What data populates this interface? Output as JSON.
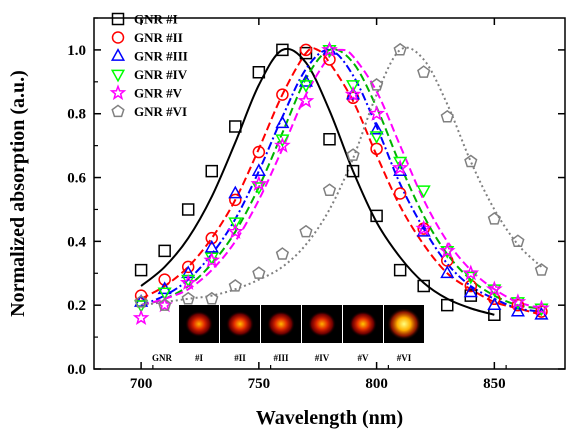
{
  "chart_data": {
    "type": "scatter",
    "xlabel": "Wavelength (nm)",
    "ylabel": "Normalized absorption (a.u.)",
    "xlim": [
      680,
      880
    ],
    "ylim": [
      0.0,
      1.1
    ],
    "xticks": [
      "700",
      "750",
      "800",
      "850"
    ],
    "yticks": [
      "0.0",
      "0.2",
      "0.4",
      "0.6",
      "0.8",
      "1.0"
    ],
    "legend_position": "top-left",
    "series": [
      {
        "name": "GNR #I",
        "marker": "square",
        "color": "#000000",
        "fit_color": "#000000",
        "fit_style": "solid",
        "x": [
          700,
          710,
          720,
          730,
          740,
          750,
          760,
          770,
          780,
          790,
          800,
          810,
          820,
          830,
          840,
          850
        ],
        "y": [
          0.31,
          0.37,
          0.5,
          0.62,
          0.76,
          0.93,
          1.0,
          0.99,
          0.72,
          0.62,
          0.48,
          0.31,
          0.26,
          0.2,
          0.23,
          0.17
        ],
        "fit": [
          [
            700,
            0.26
          ],
          [
            710,
            0.32
          ],
          [
            720,
            0.41
          ],
          [
            730,
            0.54
          ],
          [
            740,
            0.71
          ],
          [
            750,
            0.89
          ],
          [
            760,
            1.0
          ],
          [
            770,
            0.96
          ],
          [
            780,
            0.81
          ],
          [
            790,
            0.62
          ],
          [
            800,
            0.46
          ],
          [
            810,
            0.35
          ],
          [
            820,
            0.27
          ],
          [
            830,
            0.22
          ],
          [
            840,
            0.19
          ],
          [
            850,
            0.17
          ]
        ]
      },
      {
        "name": "GNR #II",
        "marker": "circle",
        "color": "#ff0000",
        "fit_color": "#ff0000",
        "fit_style": "dashed",
        "x": [
          700,
          710,
          720,
          730,
          740,
          750,
          760,
          770,
          780,
          790,
          800,
          810,
          820,
          830,
          840,
          850,
          860,
          870
        ],
        "y": [
          0.23,
          0.28,
          0.32,
          0.41,
          0.53,
          0.68,
          0.86,
          1.0,
          0.97,
          0.85,
          0.69,
          0.55,
          0.44,
          0.34,
          0.26,
          0.22,
          0.2,
          0.18
        ],
        "fit": [
          [
            700,
            0.22
          ],
          [
            710,
            0.26
          ],
          [
            720,
            0.32
          ],
          [
            730,
            0.41
          ],
          [
            740,
            0.53
          ],
          [
            750,
            0.69
          ],
          [
            760,
            0.86
          ],
          [
            770,
            0.99
          ],
          [
            775,
            1.0
          ],
          [
            780,
            0.96
          ],
          [
            790,
            0.84
          ],
          [
            800,
            0.67
          ],
          [
            810,
            0.51
          ],
          [
            820,
            0.39
          ],
          [
            830,
            0.3
          ],
          [
            840,
            0.25
          ],
          [
            850,
            0.21
          ],
          [
            860,
            0.19
          ],
          [
            870,
            0.17
          ]
        ]
      },
      {
        "name": "GNR #III",
        "marker": "triangle-up",
        "color": "#0000ff",
        "fit_color": "#0000ff",
        "fit_style": "dashdot",
        "x": [
          700,
          710,
          720,
          730,
          740,
          750,
          760,
          770,
          780,
          790,
          800,
          810,
          820,
          830,
          840,
          850,
          860,
          870
        ],
        "y": [
          0.21,
          0.25,
          0.3,
          0.38,
          0.55,
          0.62,
          0.77,
          0.9,
          1.0,
          0.86,
          0.75,
          0.62,
          0.43,
          0.3,
          0.24,
          0.2,
          0.18,
          0.17
        ],
        "fit": [
          [
            700,
            0.2
          ],
          [
            710,
            0.23
          ],
          [
            720,
            0.28
          ],
          [
            730,
            0.36
          ],
          [
            740,
            0.47
          ],
          [
            750,
            0.62
          ],
          [
            760,
            0.79
          ],
          [
            770,
            0.94
          ],
          [
            780,
            1.0
          ],
          [
            790,
            0.92
          ],
          [
            800,
            0.76
          ],
          [
            810,
            0.58
          ],
          [
            820,
            0.44
          ],
          [
            830,
            0.33
          ],
          [
            840,
            0.26
          ],
          [
            850,
            0.22
          ],
          [
            860,
            0.19
          ],
          [
            870,
            0.18
          ]
        ]
      },
      {
        "name": "GNR #IV",
        "marker": "triangle-down",
        "color": "#00ff00",
        "fit_color": "#00b400",
        "fit_style": "dashed",
        "x": [
          700,
          710,
          720,
          730,
          740,
          750,
          760,
          770,
          780,
          790,
          800,
          810,
          820,
          830,
          840,
          850,
          860,
          870
        ],
        "y": [
          0.2,
          0.24,
          0.28,
          0.35,
          0.46,
          0.57,
          0.72,
          0.89,
          1.0,
          0.89,
          0.73,
          0.65,
          0.56,
          0.37,
          0.29,
          0.25,
          0.21,
          0.19
        ],
        "fit": [
          [
            700,
            0.2
          ],
          [
            710,
            0.22
          ],
          [
            720,
            0.26
          ],
          [
            730,
            0.33
          ],
          [
            740,
            0.43
          ],
          [
            750,
            0.57
          ],
          [
            760,
            0.74
          ],
          [
            770,
            0.91
          ],
          [
            780,
            1.0
          ],
          [
            790,
            0.96
          ],
          [
            800,
            0.82
          ],
          [
            810,
            0.64
          ],
          [
            820,
            0.48
          ],
          [
            830,
            0.36
          ],
          [
            840,
            0.28
          ],
          [
            850,
            0.23
          ],
          [
            860,
            0.2
          ],
          [
            870,
            0.19
          ]
        ]
      },
      {
        "name": "GNR #V",
        "marker": "star",
        "color": "#ff00ff",
        "fit_color": "#ff00ff",
        "fit_style": "dashed",
        "x": [
          700,
          710,
          720,
          730,
          740,
          750,
          760,
          770,
          780,
          790,
          800,
          810,
          820,
          830,
          840,
          850,
          860,
          870
        ],
        "y": [
          0.16,
          0.2,
          0.27,
          0.34,
          0.43,
          0.58,
          0.7,
          0.84,
          1.0,
          0.86,
          0.8,
          0.63,
          0.44,
          0.37,
          0.3,
          0.25,
          0.21,
          0.19
        ],
        "fit": [
          [
            700,
            0.2
          ],
          [
            710,
            0.22
          ],
          [
            720,
            0.25
          ],
          [
            730,
            0.31
          ],
          [
            740,
            0.4
          ],
          [
            750,
            0.53
          ],
          [
            760,
            0.69
          ],
          [
            770,
            0.86
          ],
          [
            780,
            0.98
          ],
          [
            785,
            1.0
          ],
          [
            790,
            0.98
          ],
          [
            800,
            0.87
          ],
          [
            810,
            0.7
          ],
          [
            820,
            0.53
          ],
          [
            830,
            0.4
          ],
          [
            840,
            0.31
          ],
          [
            850,
            0.25
          ],
          [
            860,
            0.21
          ],
          [
            870,
            0.19
          ]
        ]
      },
      {
        "name": "GNR #VI",
        "marker": "pentagon",
        "color": "#808080",
        "fit_color": "#808080",
        "fit_style": "dotted",
        "x": [
          700,
          710,
          720,
          730,
          740,
          750,
          760,
          770,
          780,
          790,
          800,
          810,
          820,
          830,
          840,
          850,
          860,
          870
        ],
        "y": [
          0.21,
          0.2,
          0.22,
          0.22,
          0.26,
          0.3,
          0.36,
          0.43,
          0.56,
          0.67,
          0.89,
          1.0,
          0.93,
          0.79,
          0.65,
          0.47,
          0.4,
          0.31
        ],
        "fit": [
          [
            700,
            0.2
          ],
          [
            710,
            0.21
          ],
          [
            720,
            0.22
          ],
          [
            730,
            0.23
          ],
          [
            740,
            0.25
          ],
          [
            750,
            0.28
          ],
          [
            760,
            0.32
          ],
          [
            770,
            0.39
          ],
          [
            780,
            0.5
          ],
          [
            790,
            0.66
          ],
          [
            800,
            0.86
          ],
          [
            810,
            1.0
          ],
          [
            820,
            0.97
          ],
          [
            830,
            0.83
          ],
          [
            840,
            0.65
          ],
          [
            850,
            0.5
          ],
          [
            860,
            0.39
          ],
          [
            870,
            0.32
          ]
        ]
      }
    ],
    "inset": {
      "row_label": "GNR",
      "labels": [
        "#I",
        "#II",
        "#III",
        "#IV",
        "#V",
        "#VI"
      ],
      "spot_colors": [
        [
          "#ffb000",
          "#e02800",
          "#a00000"
        ],
        [
          "#ffc000",
          "#e83000",
          "#a00000"
        ],
        [
          "#ffb800",
          "#e02c00",
          "#a00000"
        ],
        [
          "#ffb000",
          "#e02800",
          "#a00000"
        ],
        [
          "#ffc800",
          "#e83400",
          "#a00000"
        ],
        [
          "#ffff80",
          "#ffb000",
          "#c82000"
        ]
      ]
    }
  }
}
